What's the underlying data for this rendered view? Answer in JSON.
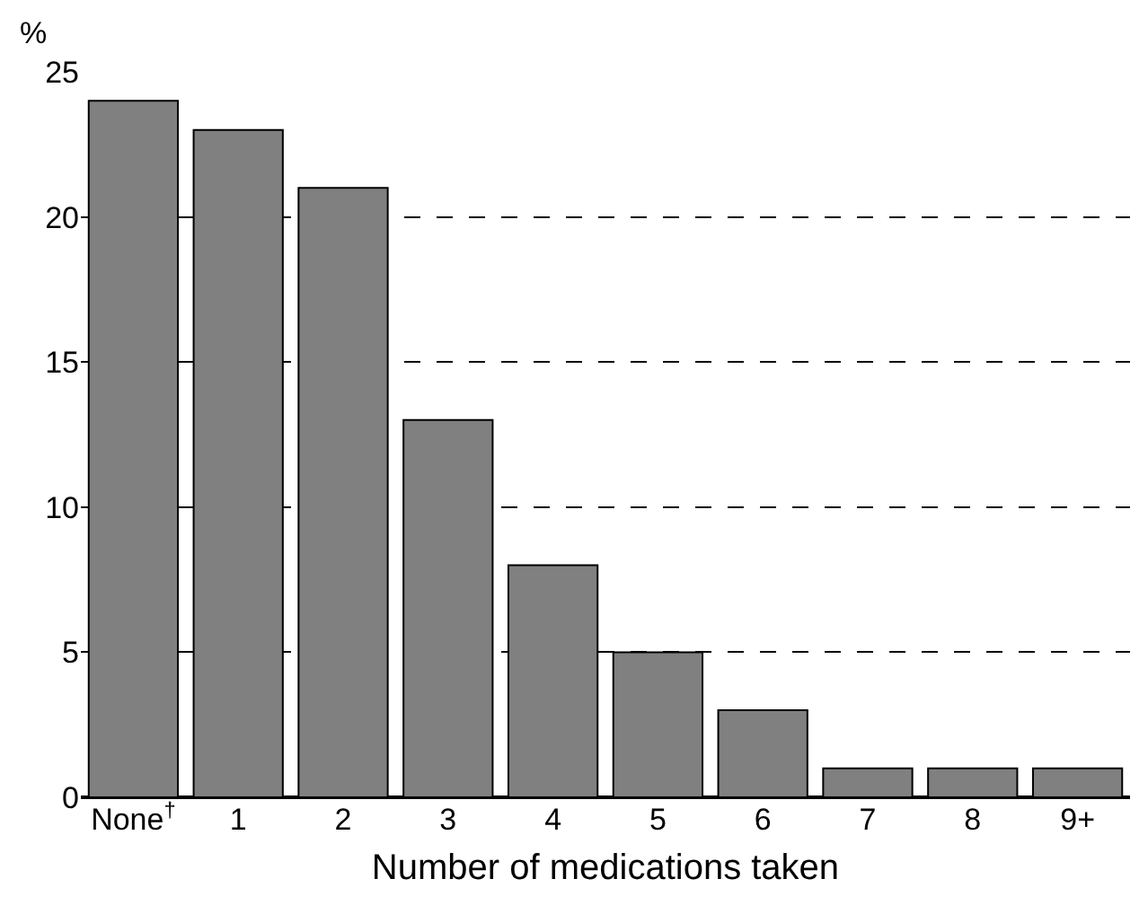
{
  "chart_data": {
    "type": "bar",
    "xlabel": "Number of medications taken",
    "ylabel": "%",
    "categories": [
      "None$^{†}$",
      "1",
      "2",
      "3",
      "4",
      "5",
      "6",
      "7",
      "8",
      "9+"
    ],
    "values": [
      24,
      23,
      21,
      13,
      8,
      5,
      3,
      1,
      1,
      1
    ],
    "color": "#808080",
    "ylim": [
      0,
      25
    ],
    "yticks": [
      0,
      5,
      10,
      15,
      20,
      25
    ],
    "grid": "y",
    "line_style": "dashed"
  }
}
